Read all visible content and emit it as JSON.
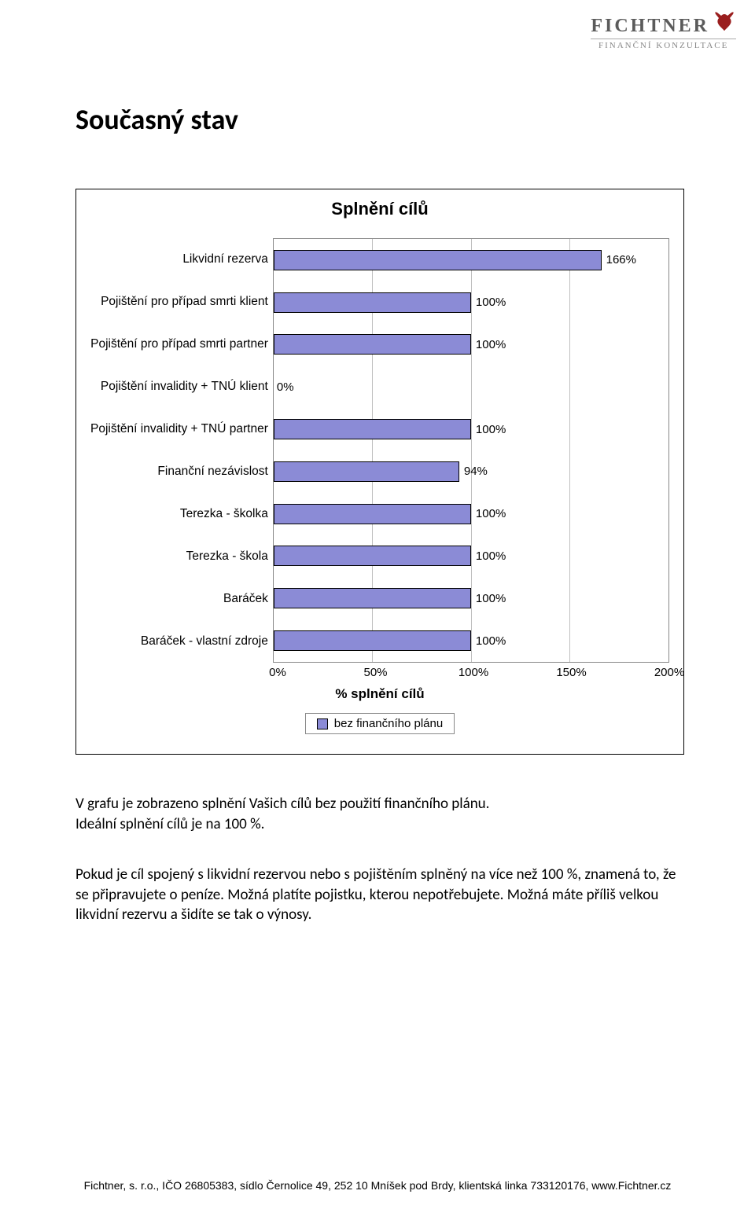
{
  "logo": {
    "name": "FICHTNER",
    "subtitle": "FINANČNÍ KONZULTACE",
    "icon_color": "#9a1e1e"
  },
  "page_title": "Současný stav",
  "chart": {
    "type": "bar",
    "orientation": "horizontal",
    "title": "Splnění cílů",
    "x_axis_title": "% splnění cílů",
    "xlim": [
      0,
      200
    ],
    "x_ticks": [
      0,
      50,
      100,
      150,
      200
    ],
    "x_tick_labels": [
      "0%",
      "50%",
      "100%",
      "150%",
      "200%"
    ],
    "grid_color": "#bfbfbf",
    "bar_color": "#8b8bd6",
    "bar_border_color": "#000000",
    "background_color": "#ffffff",
    "title_fontsize": 22,
    "label_fontsize": 15.5,
    "value_fontsize": 15,
    "legend_label": "bez finančního plánu",
    "legend_swatch_color": "#8b8bd6",
    "categories": [
      {
        "label": "Likvidní rezerva",
        "value": 166,
        "display": "166%"
      },
      {
        "label": "Pojištění pro případ smrti klient",
        "value": 100,
        "display": "100%"
      },
      {
        "label": "Pojištění pro případ smrti partner",
        "value": 100,
        "display": "100%"
      },
      {
        "label": "Pojištění invalidity + TNÚ klient",
        "value": 0,
        "display": "0%"
      },
      {
        "label": "Pojištění invalidity + TNÚ partner",
        "value": 100,
        "display": "100%"
      },
      {
        "label": "Finanční nezávislost",
        "value": 94,
        "display": "94%"
      },
      {
        "label": "Terezka - školka",
        "value": 100,
        "display": "100%"
      },
      {
        "label": "Terezka - škola",
        "value": 100,
        "display": "100%"
      },
      {
        "label": "Baráček",
        "value": 100,
        "display": "100%"
      },
      {
        "label": "Baráček - vlastní zdroje",
        "value": 100,
        "display": "100%"
      }
    ]
  },
  "paragraph1": "V grafu je zobrazeno splnění Vašich cílů bez použití finančního plánu.\nIdeální splnění cílů je na 100 %.",
  "paragraph2": "Pokud je cíl spojený s likvidní rezervou nebo s pojištěním splněný na více než 100 %, znamená to, že se připravujete o peníze. Možná platíte pojistku, kterou nepotřebujete. Možná máte příliš velkou likvidní rezervu a šidíte se tak o výnosy.",
  "footer": "Fichtner, s. r.o., IČO 26805383, sídlo Černolice 49, 252 10 Mníšek pod Brdy, klientská linka 733120176, www.Fichtner.cz"
}
